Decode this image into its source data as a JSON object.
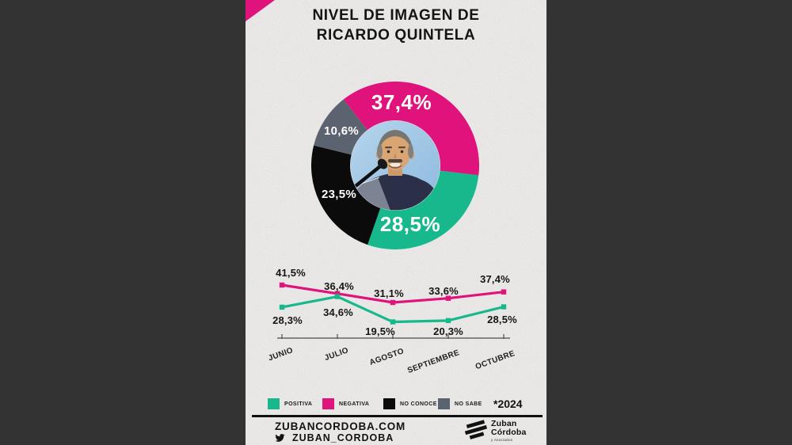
{
  "header": {
    "title_line1": "NIVEL DE IMAGEN DE",
    "title_line2": "RICARDO QUINTELA"
  },
  "chart_data": [
    {
      "type": "pie",
      "title": "Nivel de imagen de Ricardo Quintela",
      "style": "donut with photo center",
      "center_image": "ricardo-quintela-photo",
      "slices": [
        {
          "name": "NEGATIVA",
          "value": 37.4,
          "label": "37,4%",
          "color": "#e0127c"
        },
        {
          "name": "POSITIVA",
          "value": 28.5,
          "label": "28,5%",
          "color": "#17b98c"
        },
        {
          "name": "NO CONOCE",
          "value": 23.5,
          "label": "23,5%",
          "color": "#0b0b0b"
        },
        {
          "name": "NO SABE",
          "value": 10.6,
          "label": "10,6%",
          "color": "#5c6370"
        }
      ]
    },
    {
      "type": "line",
      "categories": [
        "JUNIO",
        "JULIO",
        "AGOSTO",
        "SEPTIEMBRE",
        "OCTUBRE"
      ],
      "series": [
        {
          "name": "NEGATIVA",
          "color": "#e0127c",
          "values": [
            41.5,
            36.4,
            31.1,
            33.6,
            37.4
          ],
          "labels": [
            "41,5%",
            "36,4%",
            "31,1%",
            "33,6%",
            "37,4%"
          ]
        },
        {
          "name": "POSITIVA",
          "color": "#17b98c",
          "values": [
            28.3,
            34.6,
            19.5,
            20.3,
            28.5
          ],
          "labels": [
            "28,3%",
            "34,6%",
            "19,5%",
            "20,3%",
            "28,5%"
          ]
        }
      ],
      "ylim": [
        15,
        45
      ],
      "grid": false,
      "legend_position": "bottom"
    }
  ],
  "legend": {
    "items": [
      {
        "label": "POSITIVA",
        "color": "#17b98c"
      },
      {
        "label": "NEGATIVA",
        "color": "#e0127c"
      },
      {
        "label": "NO CONOCE",
        "color": "#0b0b0b"
      },
      {
        "label": "NO SABE",
        "color": "#5c6370"
      }
    ],
    "note": "*2024"
  },
  "footer": {
    "website": "ZUBANCORDOBA.COM",
    "twitter_handle": "ZUBAN_CORDOBA",
    "logo_word1": "Zuban",
    "logo_word2": "Córdoba",
    "logo_sub": "y Asociados"
  },
  "colors": {
    "positive": "#17b98c",
    "negative": "#e0127c",
    "no_conoce": "#0b0b0b",
    "no_sabe": "#5c6370",
    "canvas": "#ebeae8",
    "letterbox": "#333333",
    "accent_corner": "#e0127c"
  }
}
